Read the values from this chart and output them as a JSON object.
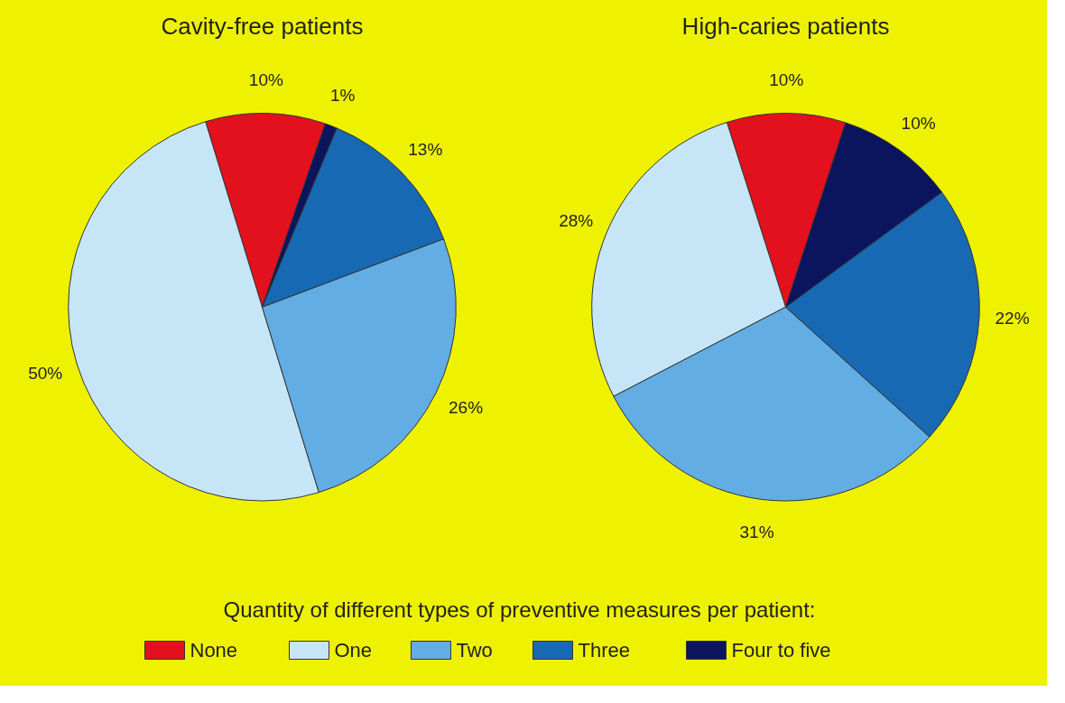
{
  "chart_data": [
    {
      "type": "pie",
      "title": "Cavity-free patients",
      "categories": [
        "None",
        "One",
        "Two",
        "Three",
        "Four to five"
      ],
      "values": [
        10,
        50,
        26,
        13,
        1
      ],
      "value_labels": [
        "10%",
        "50%",
        "26%",
        "13%",
        "1%"
      ],
      "colors": [
        "#e3101e",
        "#c6e6f7",
        "#62ade3",
        "#1769b3",
        "#0b155e"
      ],
      "legend": "bottom",
      "legend_title": "Quantity of different types of preventive measures per patient:"
    },
    {
      "type": "pie",
      "title": "High-caries patients",
      "categories": [
        null,
        null,
        null,
        null,
        null
      ],
      "values": [
        10,
        28,
        31,
        22,
        10
      ],
      "value_labels": [
        "10%",
        "28%",
        "31%",
        "22%",
        "10%"
      ],
      "colors": [
        "#e3101e",
        "#c6e6f7",
        "#62ade3",
        "#1769b3",
        "#0b155e"
      ]
    }
  ]
}
